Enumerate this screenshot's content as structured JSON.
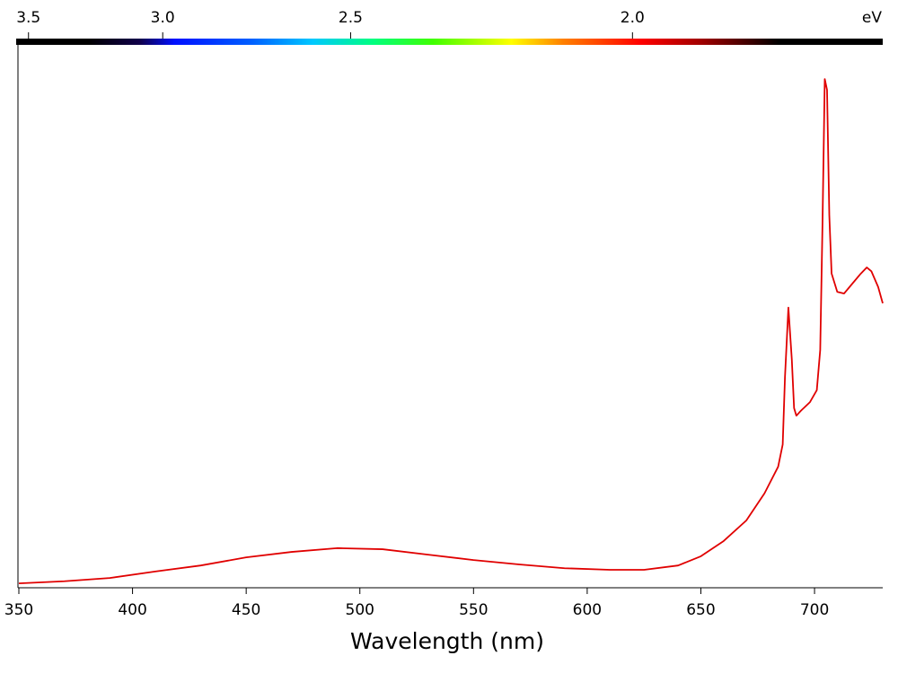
{
  "chart_data": {
    "type": "line",
    "xlabel": "Wavelength (nm)",
    "x2label": "eV",
    "xlim": [
      350,
      730
    ],
    "xticks": [
      350,
      400,
      450,
      500,
      550,
      600,
      650,
      700
    ],
    "x2ticks": [
      3.5,
      {
        "value": 3.0,
        "label": "3.0"
      },
      2.5,
      {
        "value": 2.0,
        "label": "2.0"
      }
    ],
    "ylim": [
      0,
      100
    ],
    "series": [
      {
        "color": "#e00000",
        "x": [
          350,
          370,
          390,
          410,
          430,
          450,
          470,
          490,
          510,
          530,
          550,
          570,
          590,
          610,
          625,
          640,
          650,
          660,
          670,
          678,
          684,
          686,
          687,
          688.5,
          690,
          691,
          692,
          694,
          698,
          701,
          702.5,
          703.5,
          704.5,
          705.5,
          706.5,
          707.5,
          710,
          713,
          716,
          720,
          723,
          725,
          728,
          730
        ],
        "values": [
          0.8,
          1.2,
          1.8,
          3.0,
          4.1,
          5.6,
          6.6,
          7.3,
          7.1,
          6.1,
          5.1,
          4.3,
          3.6,
          3.3,
          3.3,
          4.1,
          5.8,
          8.6,
          12.4,
          17.4,
          22.3,
          26.4,
          38.8,
          51.6,
          42.1,
          33.1,
          31.7,
          32.6,
          34.2,
          36.4,
          43.8,
          66.9,
          93.7,
          91.7,
          68.6,
          57.9,
          54.5,
          54.2,
          55.7,
          57.7,
          59.0,
          58.3,
          55.4,
          52.4
        ]
      }
    ]
  }
}
